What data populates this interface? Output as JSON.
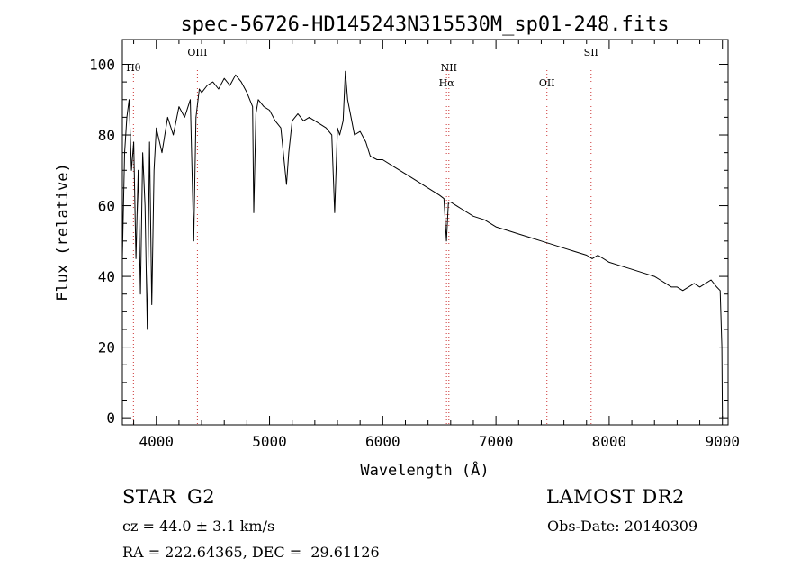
{
  "chart_data": {
    "type": "line",
    "title": "spec-56726-HD145243N315530M_sp01-248.fits",
    "xlabel": "Wavelength (Å)",
    "ylabel": "Flux (relative)",
    "xlim": [
      3700,
      9050
    ],
    "ylim": [
      -2,
      107
    ],
    "x_ticks": [
      4000,
      5000,
      6000,
      7000,
      8000,
      9000
    ],
    "y_ticks": [
      0,
      20,
      40,
      60,
      80,
      100
    ],
    "grid": false,
    "line_color": "#000000",
    "marker_color": "#cc3333",
    "spectral_lines": [
      {
        "label": "Hθ",
        "wavelength": 3798,
        "row": 0
      },
      {
        "label": "OIII",
        "wavelength": 4363,
        "row": -1
      },
      {
        "label": "NII",
        "wavelength": 6584,
        "row": 0
      },
      {
        "label": "Hα",
        "wavelength": 6563,
        "row": 1
      },
      {
        "label": "OII",
        "wavelength": 7450,
        "row": 1
      },
      {
        "label": "SII",
        "wavelength": 7840,
        "row": -1
      }
    ],
    "series": [
      {
        "x": [
          3700,
          3720,
          3740,
          3760,
          3780,
          3800,
          3820,
          3840,
          3860,
          3880,
          3900,
          3920,
          3940,
          3960,
          3980,
          4000,
          4050,
          4100,
          4150,
          4200,
          4250,
          4300,
          4330,
          4350,
          4380,
          4400,
          4450,
          4500,
          4550,
          4600,
          4650,
          4700,
          4750,
          4800,
          4850,
          4861,
          4880,
          4900,
          4950,
          5000,
          5050,
          5100,
          5150,
          5170,
          5200,
          5250,
          5300,
          5350,
          5400,
          5450,
          5500,
          5550,
          5575,
          5600,
          5620,
          5650,
          5670,
          5690,
          5720,
          5750,
          5800,
          5850,
          5890,
          5950,
          6000,
          6100,
          6200,
          6300,
          6400,
          6500,
          6540,
          6563,
          6580,
          6600,
          6700,
          6800,
          6900,
          7000,
          7100,
          7200,
          7300,
          7400,
          7500,
          7600,
          7700,
          7800,
          7850,
          7900,
          8000,
          8100,
          8200,
          8300,
          8400,
          8450,
          8500,
          8550,
          8600,
          8650,
          8700,
          8750,
          8800,
          8850,
          8900,
          8950,
          8980,
          8995,
          9000
        ],
        "y": [
          45,
          75,
          85,
          90,
          70,
          78,
          45,
          70,
          35,
          75,
          60,
          25,
          78,
          32,
          70,
          82,
          75,
          85,
          80,
          88,
          85,
          90,
          50,
          85,
          93,
          92,
          94,
          95,
          93,
          96,
          94,
          97,
          95,
          92,
          88,
          58,
          86,
          90,
          88,
          87,
          84,
          82,
          66,
          75,
          84,
          86,
          84,
          85,
          84,
          83,
          82,
          80,
          58,
          82,
          80,
          84,
          98,
          90,
          85,
          80,
          81,
          78,
          74,
          73,
          73,
          71,
          69,
          67,
          65,
          63,
          62,
          50,
          61,
          61,
          59,
          57,
          56,
          54,
          53,
          52,
          51,
          50,
          49,
          48,
          47,
          46,
          45,
          46,
          44,
          43,
          42,
          41,
          40,
          39,
          38,
          37,
          37,
          36,
          37,
          38,
          37,
          38,
          39,
          37,
          36,
          20,
          0
        ]
      }
    ]
  },
  "info": {
    "object_class": "STAR",
    "subclass": "G2",
    "release": "LAMOST DR2",
    "redshift_line": "cz = 44.0 ± 3.1 km/s",
    "obs_date": "Obs-Date: 20140309",
    "coords": "RA = 222.64365, DEC =  29.61126"
  }
}
